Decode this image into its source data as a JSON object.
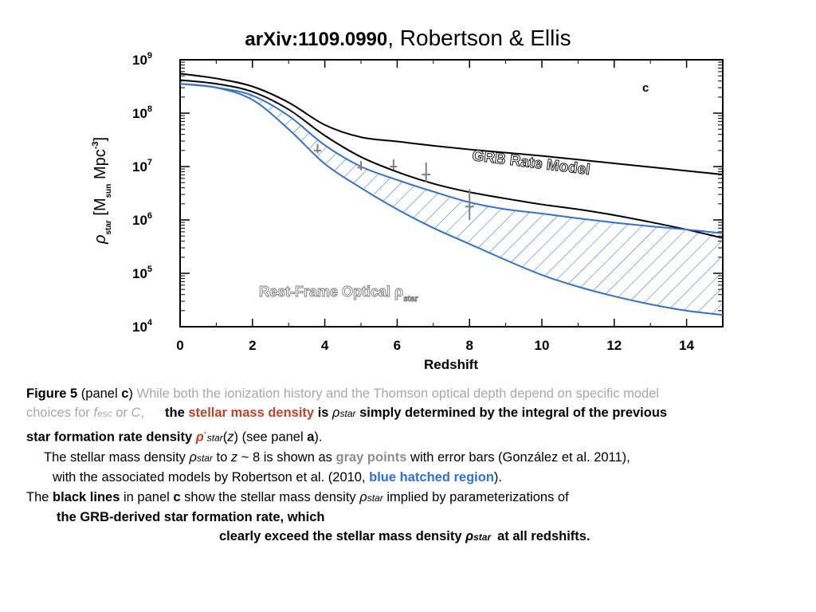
{
  "title": {
    "bold": "arXiv:1109.0990",
    "rest": ", Robertson & Ellis"
  },
  "chart_data": {
    "type": "line",
    "xlabel": "Redshift",
    "ylabel": "ρ_star [M_sun Mpc^-3]",
    "ylabel_parts": {
      "rho": "ρ",
      "star_sub": "star",
      "bracket_open": "[M",
      "sun_sub": "sun",
      "mpc": "Mpc",
      "exp": "-3",
      "bracket_close": "]"
    },
    "xlim": [
      0,
      15
    ],
    "ylim_log10": [
      4,
      9
    ],
    "y_scale": "log",
    "x_ticks": [
      0,
      2,
      4,
      6,
      8,
      10,
      12,
      14
    ],
    "y_ticks": [
      {
        "base": "10",
        "exp": "9"
      },
      {
        "base": "10",
        "exp": "8"
      },
      {
        "base": "10",
        "exp": "7"
      },
      {
        "base": "10",
        "exp": "6"
      },
      {
        "base": "10",
        "exp": "5"
      },
      {
        "base": "10",
        "exp": "4"
      }
    ],
    "panel_label": "c",
    "annotations": {
      "grb": "GRB Rate Model",
      "optical": "Rest-Frame Optical ρ",
      "optical_sub": "star"
    },
    "series": [
      {
        "name": "GRB Rate Model",
        "color": "#000000",
        "x": [
          0,
          1,
          2,
          3,
          4,
          5,
          6,
          7,
          8,
          9,
          10,
          11,
          12,
          13,
          14,
          15
        ],
        "log10_y": [
          8.74,
          8.65,
          8.5,
          8.2,
          7.78,
          7.55,
          7.47,
          7.39,
          7.32,
          7.26,
          7.2,
          7.13,
          7.06,
          6.99,
          6.92,
          6.85
        ]
      },
      {
        "name": "",
        "color": "#000000",
        "x": [
          0,
          1,
          2,
          3,
          4,
          5,
          6,
          7,
          8,
          9,
          10,
          11,
          12,
          13,
          14,
          15
        ],
        "log10_y": [
          8.62,
          8.55,
          8.4,
          8.07,
          7.58,
          7.18,
          6.9,
          6.68,
          6.52,
          6.4,
          6.29,
          6.2,
          6.09,
          5.96,
          5.82,
          5.66
        ]
      },
      {
        "name": "",
        "color": "#2f6fe0",
        "x": [
          0,
          1,
          2,
          3,
          4,
          5,
          6,
          7,
          8,
          9,
          10,
          11,
          12,
          13,
          14,
          15
        ],
        "log10_y": [
          8.55,
          8.48,
          8.33,
          7.95,
          7.4,
          7.0,
          6.75,
          6.53,
          6.33,
          6.2,
          6.12,
          6.03,
          5.95,
          5.88,
          5.82,
          5.75
        ]
      },
      {
        "name": "",
        "color": "#2f6fe0",
        "x": [
          0,
          1,
          2,
          3,
          4,
          5,
          6,
          7,
          8,
          9,
          10,
          11,
          12,
          13,
          14,
          15
        ],
        "log10_y": [
          8.55,
          8.48,
          8.25,
          7.7,
          7.05,
          6.6,
          6.2,
          5.85,
          5.55,
          5.25,
          4.97,
          4.75,
          4.57,
          4.42,
          4.3,
          4.22
        ]
      }
    ],
    "hatched_region": {
      "upper_series_index": 2,
      "lower_series_index": 3,
      "color": "#2f6fe0"
    },
    "points": [
      {
        "x": 3.8,
        "log10_y": 7.3,
        "log10_err": 0.05,
        "x_err": 0.1
      },
      {
        "x": 5.0,
        "log10_y": 6.98,
        "log10_err": 0.05,
        "x_err": 0.1
      },
      {
        "x": 5.9,
        "log10_y": 7.0,
        "log10_err": 0.06,
        "x_err": 0.1
      },
      {
        "x": 6.8,
        "log10_y": 6.85,
        "log10_err": 0.15,
        "x_err": 0.12
      },
      {
        "x": 8.0,
        "log10_y": 6.25,
        "log10_err": 0.25,
        "x_err": 0.12
      }
    ],
    "points_color": "#808080"
  },
  "caption": {
    "l1a": "Figure 5",
    "l1b": " (panel ",
    "l1c": "c",
    "l1d": ") ",
    "l1e": "While both the ionization history and the Thomson optical depth depend on specific model",
    "l2a": "choices for ",
    "l2b": "f",
    "l2c": "esc",
    "l2d": " or ",
    "l2e": "C",
    "l2f": ",",
    "l2g": "the ",
    "l2h": "stellar mass density",
    "l2i": " is ",
    "l2j": "ρ",
    "l2k": "star",
    "l2l": " simply determined by the integral of the previous",
    "l3a": "star formation rate density ",
    "l3b": "ρ",
    "l3c": "·",
    "l3d": "star",
    "l3e": "(",
    "l3f": "z",
    "l3g": ")",
    "l3h": " (see panel ",
    "l3i": "a",
    "l3j": ").",
    "l4a": "The stellar mass density ",
    "l4b": "ρ",
    "l4c": "star",
    "l4d": " to ",
    "l4e": "z",
    "l4f": " ~ 8 is shown as ",
    "l4g": "gray points",
    "l4h": " with error bars (González et al. 2011),",
    "l5a": "with the associated models by Robertson et al. (2010, ",
    "l5b": "blue hatched region",
    "l5c": ").",
    "l6a": "The ",
    "l6b": "black lines",
    "l6c": " in panel ",
    "l6d": "c",
    "l6e": " show the stellar mass density ",
    "l6f": "ρ",
    "l6g": "star",
    "l6h": " implied by parameterizations of",
    "l7": "the GRB-derived star formation rate, which",
    "l8a": "clearly exceed the stellar mass density ",
    "l8b": "ρ",
    "l8c": "star",
    "l8d": "at all redshifts."
  }
}
